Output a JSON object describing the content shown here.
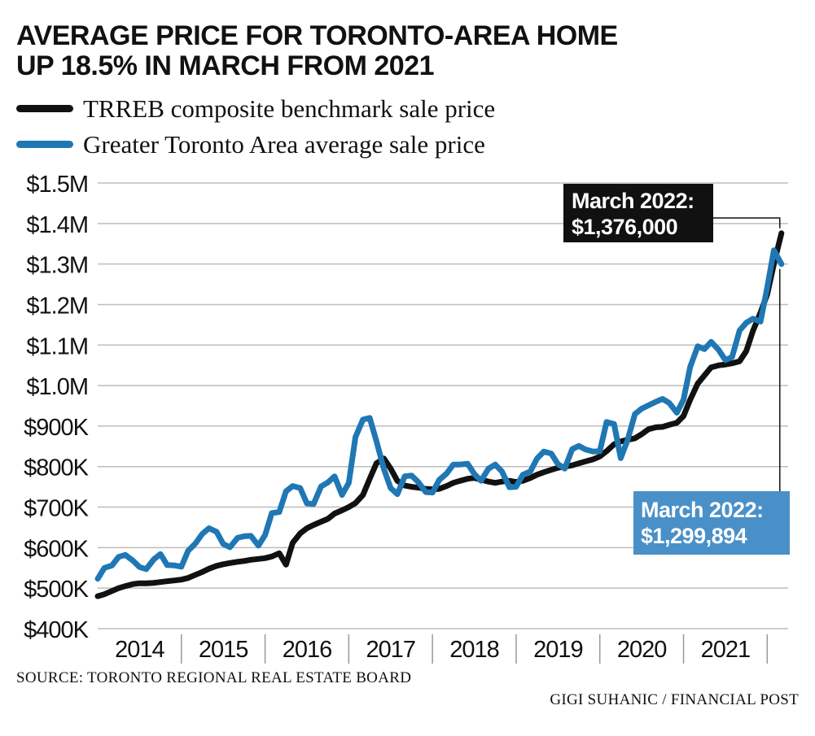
{
  "colors": {
    "benchmark": "#111111",
    "average": "#1f77b4",
    "callout_black": "#111111",
    "callout_blue": "#4a90c8"
  },
  "source": "SOURCE: TORONTO REGIONAL REAL ESTATE BOARD",
  "credit": "GIGI SUHANIC / FINANCIAL POST",
  "chart_data": {
    "type": "line",
    "title": "AVERAGE PRICE FOR TORONTO-AREA HOME UP 18.5% IN MARCH FROM 2021",
    "title_lines": [
      "AVERAGE PRICE FOR TORONTO-AREA HOME",
      "UP 18.5% IN MARCH FROM 2021"
    ],
    "xlabel": "",
    "ylabel": "",
    "ylim": [
      400000,
      1500000
    ],
    "xlim": [
      2014.0,
      2022.25
    ],
    "grid": "horizontal",
    "legend_placement": "top-left",
    "y_tick_values": [
      400000,
      500000,
      600000,
      700000,
      800000,
      900000,
      1000000,
      1100000,
      1200000,
      1300000,
      1400000,
      1500000
    ],
    "y_tick_labels": [
      "$400K",
      "$500K",
      "$600K",
      "$700K",
      "$800K",
      "$900K",
      "$1.0M",
      "$1.1M",
      "$1.2M",
      "$1.3M",
      "$1.4M",
      "$1.5M"
    ],
    "x_categories": [
      "2014",
      "2015",
      "2016",
      "2017",
      "2018",
      "2019",
      "2020",
      "2021"
    ],
    "annotations": [
      {
        "series": "TRREB composite benchmark sale price",
        "line1": "March 2022:",
        "line2": "$1,376,000",
        "x": 2022.17,
        "y": 1376000
      },
      {
        "series": "Greater Toronto Area average sale price",
        "line1": "March 2022:",
        "line2": "$1,299,894",
        "x": 2022.17,
        "y": 1299894
      }
    ],
    "series": [
      {
        "name": "TRREB composite benchmark sale price",
        "color": "#111111",
        "points": [
          [
            2014.0,
            480000
          ],
          [
            2014.08,
            485000
          ],
          [
            2014.17,
            493000
          ],
          [
            2014.25,
            500000
          ],
          [
            2014.33,
            505000
          ],
          [
            2014.42,
            510000
          ],
          [
            2014.5,
            512000
          ],
          [
            2014.58,
            512000
          ],
          [
            2014.67,
            513000
          ],
          [
            2014.75,
            515000
          ],
          [
            2014.83,
            517000
          ],
          [
            2014.92,
            519000
          ],
          [
            2015.0,
            521000
          ],
          [
            2015.08,
            525000
          ],
          [
            2015.17,
            533000
          ],
          [
            2015.25,
            540000
          ],
          [
            2015.33,
            548000
          ],
          [
            2015.42,
            555000
          ],
          [
            2015.5,
            559000
          ],
          [
            2015.58,
            562000
          ],
          [
            2015.67,
            565000
          ],
          [
            2015.75,
            567000
          ],
          [
            2015.83,
            570000
          ],
          [
            2015.92,
            572000
          ],
          [
            2016.0,
            574000
          ],
          [
            2016.08,
            578000
          ],
          [
            2016.17,
            586000
          ],
          [
            2016.25,
            558000
          ],
          [
            2016.33,
            612000
          ],
          [
            2016.42,
            635000
          ],
          [
            2016.5,
            648000
          ],
          [
            2016.58,
            656000
          ],
          [
            2016.67,
            664000
          ],
          [
            2016.75,
            671000
          ],
          [
            2016.83,
            684000
          ],
          [
            2016.92,
            692000
          ],
          [
            2017.0,
            700000
          ],
          [
            2017.08,
            710000
          ],
          [
            2017.17,
            730000
          ],
          [
            2017.25,
            770000
          ],
          [
            2017.33,
            808000
          ],
          [
            2017.42,
            820000
          ],
          [
            2017.5,
            795000
          ],
          [
            2017.58,
            765000
          ],
          [
            2017.67,
            753000
          ],
          [
            2017.75,
            750000
          ],
          [
            2017.83,
            748000
          ],
          [
            2017.92,
            745000
          ],
          [
            2018.0,
            744000
          ],
          [
            2018.08,
            745000
          ],
          [
            2018.17,
            752000
          ],
          [
            2018.25,
            760000
          ],
          [
            2018.33,
            765000
          ],
          [
            2018.42,
            770000
          ],
          [
            2018.5,
            772000
          ],
          [
            2018.58,
            768000
          ],
          [
            2018.67,
            763000
          ],
          [
            2018.75,
            760000
          ],
          [
            2018.83,
            763000
          ],
          [
            2018.92,
            765000
          ],
          [
            2019.0,
            762000
          ],
          [
            2019.08,
            765000
          ],
          [
            2019.17,
            772000
          ],
          [
            2019.25,
            780000
          ],
          [
            2019.33,
            786000
          ],
          [
            2019.42,
            792000
          ],
          [
            2019.5,
            797000
          ],
          [
            2019.58,
            800000
          ],
          [
            2019.67,
            803000
          ],
          [
            2019.75,
            808000
          ],
          [
            2019.83,
            813000
          ],
          [
            2019.92,
            818000
          ],
          [
            2020.0,
            825000
          ],
          [
            2020.08,
            838000
          ],
          [
            2020.17,
            855000
          ],
          [
            2020.25,
            862000
          ],
          [
            2020.33,
            866000
          ],
          [
            2020.42,
            870000
          ],
          [
            2020.5,
            880000
          ],
          [
            2020.58,
            892000
          ],
          [
            2020.67,
            897000
          ],
          [
            2020.75,
            898000
          ],
          [
            2020.83,
            903000
          ],
          [
            2020.92,
            908000
          ],
          [
            2021.0,
            925000
          ],
          [
            2021.08,
            965000
          ],
          [
            2021.17,
            1005000
          ],
          [
            2021.25,
            1025000
          ],
          [
            2021.33,
            1045000
          ],
          [
            2021.42,
            1050000
          ],
          [
            2021.5,
            1052000
          ],
          [
            2021.58,
            1055000
          ],
          [
            2021.67,
            1060000
          ],
          [
            2021.75,
            1085000
          ],
          [
            2021.83,
            1135000
          ],
          [
            2021.92,
            1180000
          ],
          [
            2022.0,
            1225000
          ],
          [
            2022.08,
            1300000
          ],
          [
            2022.17,
            1376000
          ]
        ]
      },
      {
        "name": "Greater Toronto Area average sale price",
        "color": "#1f77b4",
        "points": [
          [
            2014.0,
            523000
          ],
          [
            2014.08,
            550000
          ],
          [
            2014.17,
            556000
          ],
          [
            2014.25,
            577000
          ],
          [
            2014.33,
            582000
          ],
          [
            2014.42,
            568000
          ],
          [
            2014.5,
            552000
          ],
          [
            2014.58,
            547000
          ],
          [
            2014.67,
            571000
          ],
          [
            2014.75,
            584000
          ],
          [
            2014.83,
            557000
          ],
          [
            2014.92,
            556000
          ],
          [
            2015.0,
            553000
          ],
          [
            2015.08,
            592000
          ],
          [
            2015.17,
            611000
          ],
          [
            2015.25,
            634000
          ],
          [
            2015.33,
            648000
          ],
          [
            2015.42,
            639000
          ],
          [
            2015.5,
            609000
          ],
          [
            2015.58,
            601000
          ],
          [
            2015.67,
            624000
          ],
          [
            2015.75,
            628000
          ],
          [
            2015.83,
            629000
          ],
          [
            2015.92,
            605000
          ],
          [
            2016.0,
            631000
          ],
          [
            2016.08,
            685000
          ],
          [
            2016.17,
            688000
          ],
          [
            2016.25,
            739000
          ],
          [
            2016.33,
            752000
          ],
          [
            2016.42,
            747000
          ],
          [
            2016.5,
            709000
          ],
          [
            2016.58,
            708000
          ],
          [
            2016.67,
            751000
          ],
          [
            2016.75,
            761000
          ],
          [
            2016.83,
            776000
          ],
          [
            2016.92,
            730000
          ],
          [
            2017.0,
            760000
          ],
          [
            2017.08,
            873000
          ],
          [
            2017.17,
            916000
          ],
          [
            2017.25,
            920000
          ],
          [
            2017.33,
            863000
          ],
          [
            2017.42,
            794000
          ],
          [
            2017.5,
            747000
          ],
          [
            2017.58,
            732000
          ],
          [
            2017.67,
            776000
          ],
          [
            2017.75,
            778000
          ],
          [
            2017.83,
            762000
          ],
          [
            2017.92,
            737000
          ],
          [
            2018.0,
            736000
          ],
          [
            2018.08,
            767000
          ],
          [
            2018.17,
            783000
          ],
          [
            2018.25,
            805000
          ],
          [
            2018.33,
            805000
          ],
          [
            2018.42,
            807000
          ],
          [
            2018.5,
            782000
          ],
          [
            2018.58,
            765000
          ],
          [
            2018.67,
            795000
          ],
          [
            2018.75,
            805000
          ],
          [
            2018.83,
            788000
          ],
          [
            2018.92,
            749000
          ],
          [
            2019.0,
            750000
          ],
          [
            2019.08,
            780000
          ],
          [
            2019.17,
            788000
          ],
          [
            2019.25,
            820000
          ],
          [
            2019.33,
            837000
          ],
          [
            2019.42,
            832000
          ],
          [
            2019.5,
            806000
          ],
          [
            2019.58,
            795000
          ],
          [
            2019.67,
            843000
          ],
          [
            2019.75,
            851000
          ],
          [
            2019.83,
            842000
          ],
          [
            2019.92,
            837000
          ],
          [
            2020.0,
            838000
          ],
          [
            2020.08,
            910000
          ],
          [
            2020.17,
            905000
          ],
          [
            2020.25,
            821000
          ],
          [
            2020.33,
            864000
          ],
          [
            2020.42,
            930000
          ],
          [
            2020.5,
            943000
          ],
          [
            2020.58,
            951000
          ],
          [
            2020.67,
            960000
          ],
          [
            2020.75,
            967000
          ],
          [
            2020.83,
            957000
          ],
          [
            2020.92,
            933000
          ],
          [
            2021.0,
            965000
          ],
          [
            2021.08,
            1046000
          ],
          [
            2021.17,
            1097000
          ],
          [
            2021.25,
            1090000
          ],
          [
            2021.33,
            1108000
          ],
          [
            2021.42,
            1088000
          ],
          [
            2021.5,
            1063000
          ],
          [
            2021.58,
            1070000
          ],
          [
            2021.67,
            1136000
          ],
          [
            2021.75,
            1155000
          ],
          [
            2021.83,
            1165000
          ],
          [
            2021.92,
            1158000
          ],
          [
            2022.0,
            1242000
          ],
          [
            2022.08,
            1334000
          ],
          [
            2022.17,
            1299894
          ]
        ]
      }
    ]
  }
}
